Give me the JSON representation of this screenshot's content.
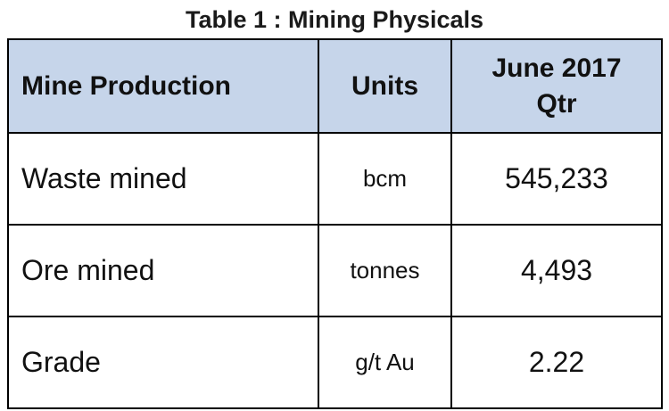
{
  "title": "Table 1 : Mining Physicals",
  "table": {
    "headers": {
      "production": "Mine Production",
      "units": "Units",
      "period_line1": "June 2017",
      "period_line2": "Qtr"
    },
    "rows": [
      {
        "label": "Waste mined",
        "unit": "bcm",
        "value": "545,233"
      },
      {
        "label": "Ore mined",
        "unit": "tonnes",
        "value": "4,493"
      },
      {
        "label": "Grade",
        "unit": "g/t Au",
        "value": "2.22"
      }
    ]
  },
  "colors": {
    "header_background": "#c6d5ea",
    "border": "#000000",
    "text": "#111111"
  }
}
